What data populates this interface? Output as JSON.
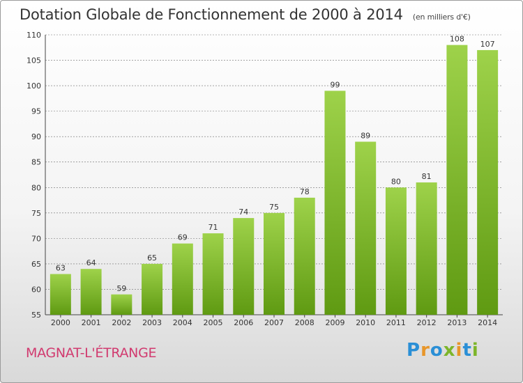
{
  "title": "Dotation Globale de Fonctionnement de 2000 à 2014",
  "subtitle": "(en milliers d'€)",
  "town": "MAGNAT-L'ÉTRANGE",
  "logo": {
    "text": "Proxiti",
    "letters": [
      "P",
      "r",
      "o",
      "x",
      "i",
      "t",
      "i"
    ],
    "colors": [
      "#2a8fd6",
      "#e8962a",
      "#2a8fd6",
      "#7db52a",
      "#e8962a",
      "#2a8fd6",
      "#7db52a"
    ]
  },
  "colors": {
    "bar_top": "#9ed24a",
    "bar_bottom": "#5f9a12",
    "town": "#d13a6f"
  },
  "chart_data": {
    "type": "bar",
    "categories": [
      "2000",
      "2001",
      "2002",
      "2003",
      "2004",
      "2005",
      "2006",
      "2007",
      "2008",
      "2009",
      "2010",
      "2011",
      "2012",
      "2013",
      "2014"
    ],
    "values": [
      63,
      64,
      59,
      65,
      69,
      71,
      74,
      75,
      78,
      99,
      89,
      80,
      81,
      108,
      107
    ],
    "title": "Dotation Globale de Fonctionnement de 2000 à 2014",
    "ylim": [
      55,
      110
    ],
    "yticks": [
      55,
      60,
      65,
      70,
      75,
      80,
      85,
      90,
      95,
      100,
      105,
      110
    ],
    "grid": true
  }
}
